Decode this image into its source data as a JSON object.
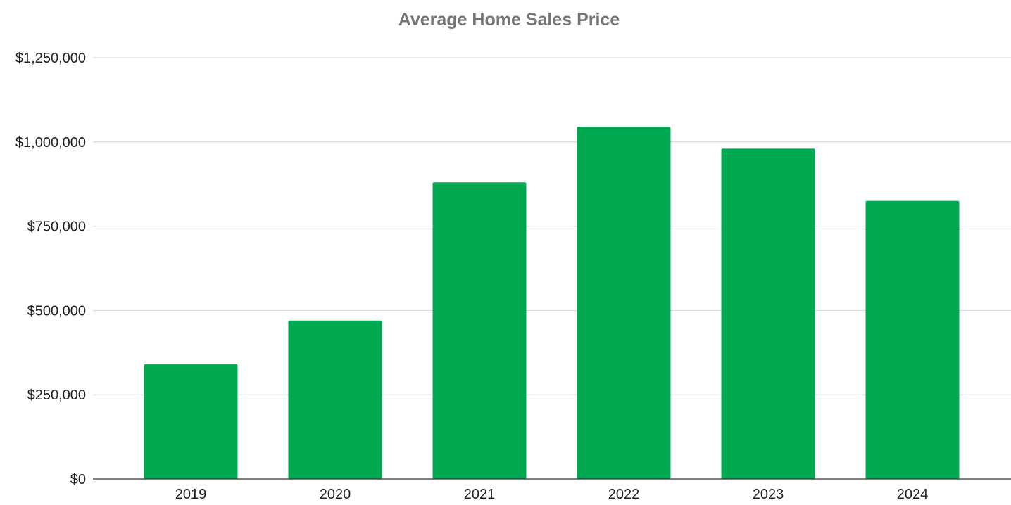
{
  "chart_data": {
    "type": "bar",
    "title": "Average Home Sales Price",
    "xlabel": "",
    "ylabel": "",
    "categories": [
      "2019",
      "2020",
      "2021",
      "2022",
      "2023",
      "2024"
    ],
    "values": [
      340000,
      470000,
      880000,
      1045000,
      980000,
      825000
    ],
    "ylim": [
      0,
      1250000
    ],
    "yticks": [
      0,
      250000,
      500000,
      750000,
      1000000,
      1250000
    ],
    "ytick_labels": [
      "$0",
      "$250,000",
      "$500,000",
      "$750,000",
      "$1,000,000",
      "$1,250,000"
    ],
    "grid": true,
    "legend": "none",
    "bar_color": "#00a84f"
  }
}
